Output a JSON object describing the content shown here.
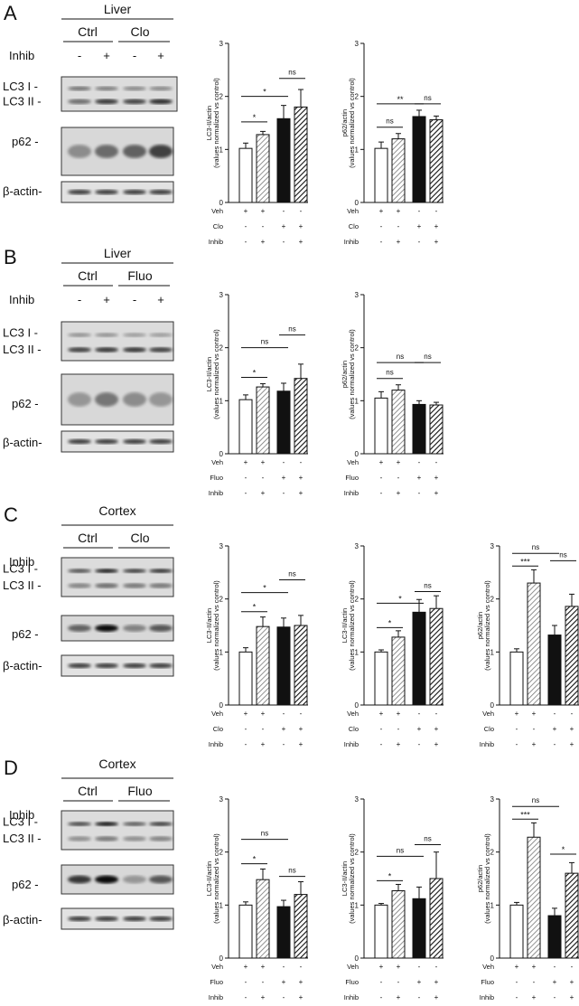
{
  "panels": [
    {
      "letter": "A",
      "tissue": "Liver",
      "groups": [
        "Ctrl",
        "Clo"
      ],
      "inhib_label": "Inhib",
      "inhib_signs": [
        "-",
        "+",
        "-",
        "+"
      ],
      "blot_labels": [
        "LC3  I -",
        "LC3 II -",
        "p62 -",
        "β-actin-"
      ]
    },
    {
      "letter": "B",
      "tissue": "Liver",
      "groups": [
        "Ctrl",
        "Fluo"
      ],
      "inhib_label": "Inhib",
      "inhib_signs": [
        "-",
        "+",
        "-",
        "+"
      ],
      "blot_labels": [
        "LC3  I -",
        "LC3 II -",
        "p62 -",
        "β-actin-"
      ]
    },
    {
      "letter": "C",
      "tissue": "Cortex",
      "groups": [
        "Ctrl",
        "Clo"
      ],
      "inhib_label": "Inhib",
      "inhib_signs": [
        "-",
        "+",
        "-",
        "+"
      ],
      "blot_labels": [
        "LC3  I -",
        "LC3 II -",
        "p62 -",
        "β-actin-"
      ]
    },
    {
      "letter": "D",
      "tissue": "Cortex",
      "groups": [
        "Ctrl",
        "Fluo"
      ],
      "inhib_label": "Inhib",
      "inhib_signs": [
        "-",
        "+",
        "-",
        "+"
      ],
      "blot_labels": [
        "LC3  I -",
        "LC3 II -",
        "p62 -",
        "β-actin-"
      ]
    }
  ],
  "chart_data": [
    {
      "type": "bar",
      "panel": "A",
      "ylabel": "LC3-II/actin",
      "ylabel2": "(values normalized vs control)",
      "ylim": [
        0,
        3
      ],
      "yticks": [
        "0",
        "1",
        "2",
        "3"
      ],
      "values": [
        1.02,
        1.28,
        1.58,
        1.8
      ],
      "errors": [
        0.1,
        0.06,
        0.25,
        0.33
      ],
      "treatment_rows": [
        {
          "label": "Veh",
          "signs": [
            "+",
            "+",
            "-",
            "-"
          ]
        },
        {
          "label": "Clo",
          "signs": [
            "-",
            "-",
            "+",
            "+"
          ]
        },
        {
          "label": "Inhib",
          "signs": [
            "-",
            "+",
            "-",
            "+"
          ]
        }
      ],
      "significance": [
        {
          "from": 0,
          "to": 1,
          "y": 1.52,
          "label": "*"
        },
        {
          "from": 0,
          "to": 2,
          "y": 2.0,
          "label": "*"
        },
        {
          "from": 2,
          "to": 3,
          "y": 2.34,
          "label": "ns"
        }
      ]
    },
    {
      "type": "bar",
      "panel": "A",
      "ylabel": "p62/actin",
      "ylabel2": "(values normalized vs control)",
      "ylim": [
        0,
        3
      ],
      "yticks": [
        "0",
        "1",
        "2",
        "3"
      ],
      "values": [
        1.02,
        1.2,
        1.62,
        1.56
      ],
      "errors": [
        0.12,
        0.1,
        0.12,
        0.07
      ],
      "treatment_rows": [
        {
          "label": "Veh",
          "signs": [
            "+",
            "+",
            "-",
            "-"
          ]
        },
        {
          "label": "Clo",
          "signs": [
            "-",
            "-",
            "+",
            "+"
          ]
        },
        {
          "label": "Inhib",
          "signs": [
            "-",
            "+",
            "-",
            "+"
          ]
        }
      ],
      "significance": [
        {
          "from": 0,
          "to": 1,
          "y": 1.42,
          "label": "ns"
        },
        {
          "from": 0,
          "to": 2,
          "y": 1.86,
          "label": "**"
        },
        {
          "from": 2,
          "to": 3,
          "y": 1.86,
          "label": "ns"
        }
      ]
    },
    {
      "type": "bar",
      "panel": "B",
      "ylabel": "LC3-II/actin",
      "ylabel2": "(values normalized vs control)",
      "ylim": [
        0,
        3
      ],
      "yticks": [
        "0",
        "1",
        "2",
        "3"
      ],
      "values": [
        1.02,
        1.26,
        1.18,
        1.42
      ],
      "errors": [
        0.09,
        0.06,
        0.15,
        0.27
      ],
      "treatment_rows": [
        {
          "label": "Veh",
          "signs": [
            "+",
            "+",
            "-",
            "-"
          ]
        },
        {
          "label": "Fluo",
          "signs": [
            "-",
            "-",
            "+",
            "+"
          ]
        },
        {
          "label": "Inhib",
          "signs": [
            "-",
            "+",
            "-",
            "+"
          ]
        }
      ],
      "significance": [
        {
          "from": 0,
          "to": 1,
          "y": 1.44,
          "label": "*"
        },
        {
          "from": 0,
          "to": 2,
          "y": 2.0,
          "label": "ns"
        },
        {
          "from": 2,
          "to": 3,
          "y": 2.24,
          "label": "ns"
        }
      ]
    },
    {
      "type": "bar",
      "panel": "B",
      "ylabel": "p62/actin",
      "ylabel2": "(values normalized vs control)",
      "ylim": [
        0,
        3
      ],
      "yticks": [
        "0",
        "1",
        "2",
        "3"
      ],
      "values": [
        1.05,
        1.2,
        0.93,
        0.92
      ],
      "errors": [
        0.12,
        0.1,
        0.07,
        0.05
      ],
      "treatment_rows": [
        {
          "label": "Veh",
          "signs": [
            "+",
            "+",
            "-",
            "-"
          ]
        },
        {
          "label": "Fluo",
          "signs": [
            "-",
            "-",
            "+",
            "+"
          ]
        },
        {
          "label": "Inhib",
          "signs": [
            "-",
            "+",
            "-",
            "+"
          ]
        }
      ],
      "significance": [
        {
          "from": 0,
          "to": 1,
          "y": 1.42,
          "label": "ns"
        },
        {
          "from": 0,
          "to": 2,
          "y": 1.72,
          "label": "ns"
        },
        {
          "from": 2,
          "to": 3,
          "y": 1.72,
          "label": "ns"
        }
      ]
    },
    {
      "type": "bar",
      "panel": "C",
      "ylabel": "LC3-II/actin",
      "ylabel2": "(values normalized vs control)",
      "ylim": [
        0,
        3
      ],
      "yticks": [
        "0",
        "1",
        "2",
        "3"
      ],
      "values": [
        1.0,
        1.48,
        1.47,
        1.5
      ],
      "errors": [
        0.08,
        0.18,
        0.17,
        0.19
      ],
      "treatment_rows": [
        {
          "label": "Veh",
          "signs": [
            "+",
            "+",
            "-",
            "-"
          ]
        },
        {
          "label": "Clo",
          "signs": [
            "-",
            "-",
            "+",
            "+"
          ]
        },
        {
          "label": "Inhib",
          "signs": [
            "-",
            "+",
            "-",
            "+"
          ]
        }
      ],
      "significance": [
        {
          "from": 0,
          "to": 1,
          "y": 1.76,
          "label": "*"
        },
        {
          "from": 0,
          "to": 2,
          "y": 2.12,
          "label": "*"
        },
        {
          "from": 2,
          "to": 3,
          "y": 2.36,
          "label": "ns"
        }
      ]
    },
    {
      "type": "bar",
      "panel": "C",
      "ylabel": "LC3-II/actin",
      "ylabel2": "(values normalized vs control)",
      "ylim": [
        0,
        3
      ],
      "yticks": [
        "0",
        "1",
        "2",
        "3"
      ],
      "values": [
        1.0,
        1.28,
        1.75,
        1.82
      ],
      "errors": [
        0.04,
        0.12,
        0.24,
        0.24
      ],
      "treatment_rows": [
        {
          "label": "Veh",
          "signs": [
            "+",
            "+",
            "-",
            "-"
          ]
        },
        {
          "label": "Clo",
          "signs": [
            "-",
            "-",
            "+",
            "+"
          ]
        },
        {
          "label": "Inhib",
          "signs": [
            "-",
            "+",
            "-",
            "+"
          ]
        }
      ],
      "significance": [
        {
          "from": 0,
          "to": 1,
          "y": 1.46,
          "label": "*"
        },
        {
          "from": 0,
          "to": 2,
          "y": 1.92,
          "label": "*"
        },
        {
          "from": 2,
          "to": 3,
          "y": 2.14,
          "label": "ns"
        }
      ]
    },
    {
      "type": "bar",
      "panel": "C",
      "ylabel": "p62/actin",
      "ylabel2": "(values normalized vs control)",
      "ylim": [
        0,
        3
      ],
      "yticks": [
        "0",
        "1",
        "2",
        "3"
      ],
      "values": [
        1.0,
        2.3,
        1.32,
        1.86
      ],
      "errors": [
        0.06,
        0.25,
        0.18,
        0.23
      ],
      "treatment_rows": [
        {
          "label": "Veh",
          "signs": [
            "+",
            "+",
            "-",
            "-"
          ]
        },
        {
          "label": "Clo",
          "signs": [
            "-",
            "-",
            "+",
            "+"
          ]
        },
        {
          "label": "Inhib",
          "signs": [
            "-",
            "+",
            "-",
            "+"
          ]
        }
      ],
      "significance": [
        {
          "from": 0,
          "to": 1,
          "y": 2.62,
          "label": "***"
        },
        {
          "from": 0,
          "to": 2,
          "y": 2.86,
          "label": "ns"
        },
        {
          "from": 2,
          "to": 3,
          "y": 2.72,
          "label": "ns"
        }
      ]
    },
    {
      "type": "bar",
      "panel": "D",
      "ylabel": "LC3-II/actin",
      "ylabel2": "(values normalized vs control)",
      "ylim": [
        0,
        3
      ],
      "yticks": [
        "0",
        "1",
        "2",
        "3"
      ],
      "values": [
        1.0,
        1.48,
        0.97,
        1.2
      ],
      "errors": [
        0.06,
        0.2,
        0.12,
        0.24
      ],
      "treatment_rows": [
        {
          "label": "Veh",
          "signs": [
            "+",
            "+",
            "-",
            "-"
          ]
        },
        {
          "label": "Fluo",
          "signs": [
            "-",
            "-",
            "+",
            "+"
          ]
        },
        {
          "label": "Inhib",
          "signs": [
            "-",
            "+",
            "-",
            "+"
          ]
        }
      ],
      "significance": [
        {
          "from": 0,
          "to": 1,
          "y": 1.78,
          "label": "*"
        },
        {
          "from": 0,
          "to": 2,
          "y": 2.24,
          "label": "ns"
        },
        {
          "from": 2,
          "to": 3,
          "y": 1.54,
          "label": "ns"
        }
      ]
    },
    {
      "type": "bar",
      "panel": "D",
      "ylabel": "LC3-II/actin",
      "ylabel2": "(values normalized vs control)",
      "ylim": [
        0,
        3
      ],
      "yticks": [
        "0",
        "1",
        "2",
        "3"
      ],
      "values": [
        1.0,
        1.27,
        1.12,
        1.5
      ],
      "errors": [
        0.03,
        0.12,
        0.22,
        0.5
      ],
      "treatment_rows": [
        {
          "label": "Veh",
          "signs": [
            "+",
            "+",
            "-",
            "-"
          ]
        },
        {
          "label": "Fluo",
          "signs": [
            "-",
            "-",
            "+",
            "+"
          ]
        },
        {
          "label": "Inhib",
          "signs": [
            "-",
            "+",
            "-",
            "+"
          ]
        }
      ],
      "significance": [
        {
          "from": 0,
          "to": 1,
          "y": 1.46,
          "label": "*"
        },
        {
          "from": 0,
          "to": 2,
          "y": 1.92,
          "label": "ns"
        },
        {
          "from": 2,
          "to": 3,
          "y": 2.14,
          "label": "ns"
        }
      ]
    },
    {
      "type": "bar",
      "panel": "D",
      "ylabel": "p62/actin",
      "ylabel2": "(values normalized vs control)",
      "ylim": [
        0,
        3
      ],
      "yticks": [
        "0",
        "1",
        "2",
        "3"
      ],
      "values": [
        1.0,
        2.28,
        0.8,
        1.6
      ],
      "errors": [
        0.05,
        0.27,
        0.14,
        0.2
      ],
      "treatment_rows": [
        {
          "label": "Veh",
          "signs": [
            "+",
            "+",
            "-",
            "-"
          ]
        },
        {
          "label": "Fluo",
          "signs": [
            "-",
            "-",
            "+",
            "+"
          ]
        },
        {
          "label": "Inhib",
          "signs": [
            "-",
            "+",
            "-",
            "+"
          ]
        }
      ],
      "significance": [
        {
          "from": 0,
          "to": 1,
          "y": 2.62,
          "label": "***"
        },
        {
          "from": 0,
          "to": 2,
          "y": 2.86,
          "label": "ns"
        },
        {
          "from": 2,
          "to": 3,
          "y": 1.96,
          "label": "*"
        }
      ]
    }
  ]
}
